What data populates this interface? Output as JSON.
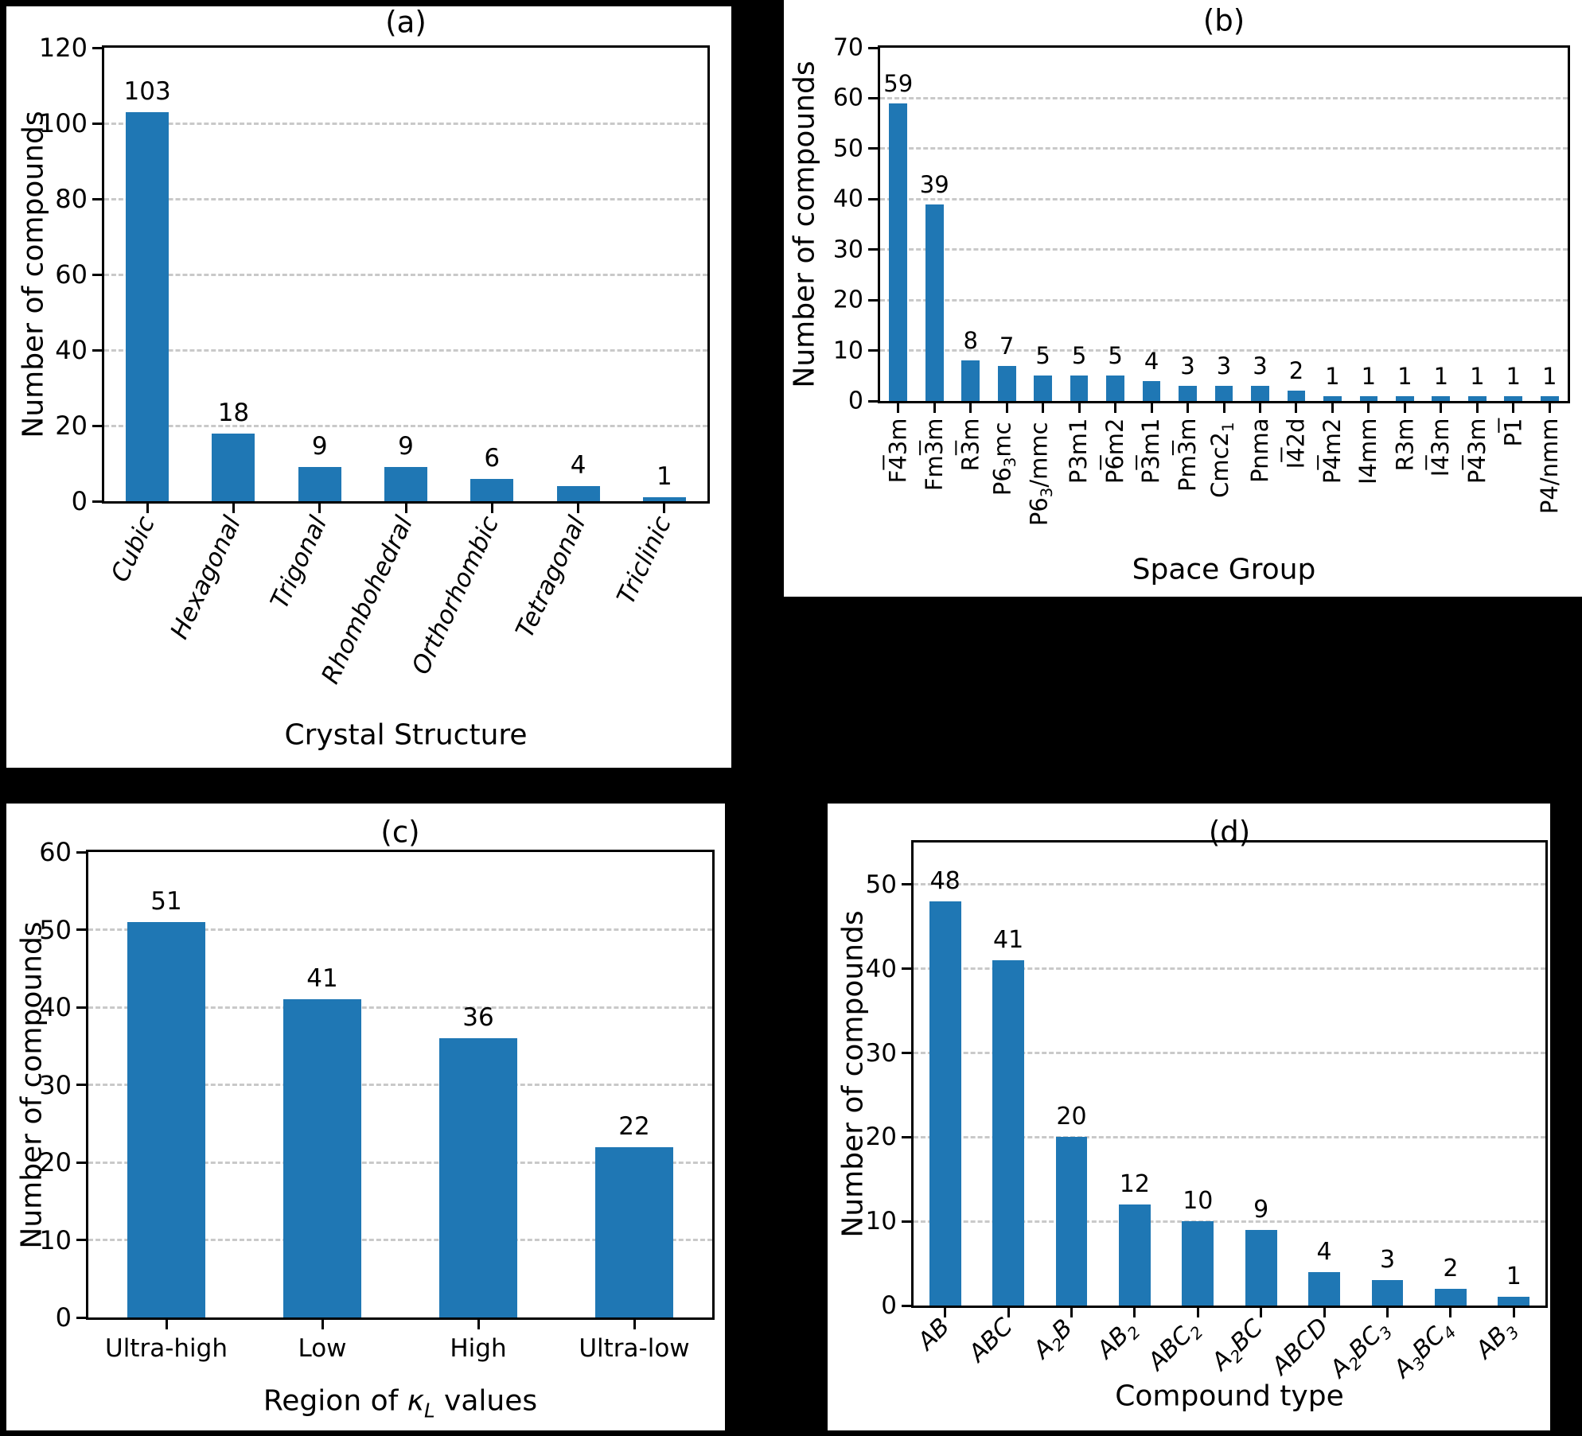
{
  "page": {
    "background": "#000000",
    "panel_background": "#ffffff"
  },
  "colors": {
    "bar": "#1f77b4",
    "grid": "#c9c9c9",
    "axis": "#000000",
    "text": "#000000"
  },
  "chart_data": [
    {
      "id": "a",
      "type": "bar",
      "title": "(a)",
      "ylabel": "Number of compounds",
      "xlabel_segments": [
        {
          "t": "Crystal Structure"
        }
      ],
      "ylim": [
        0,
        120
      ],
      "yticks": [
        0,
        20,
        40,
        60,
        80,
        100,
        120
      ],
      "grid": "dashed-horizontal",
      "legend": null,
      "categories": [
        [
          {
            "t": "Cubic"
          }
        ],
        [
          {
            "t": "Hexagonal"
          }
        ],
        [
          {
            "t": "Trigonal"
          }
        ],
        [
          {
            "t": "Rhombohedral"
          }
        ],
        [
          {
            "t": "Orthorhombic"
          }
        ],
        [
          {
            "t": "Tetragonal"
          }
        ],
        [
          {
            "t": "Triclinic"
          }
        ]
      ],
      "values": [
        103,
        18,
        9,
        9,
        6,
        4,
        1
      ]
    },
    {
      "id": "b",
      "type": "bar",
      "title": "(b)",
      "ylabel": "Number of compounds",
      "xlabel_segments": [
        {
          "t": "Space Group"
        }
      ],
      "ylim": [
        0,
        70
      ],
      "yticks": [
        0,
        10,
        20,
        30,
        40,
        50,
        60,
        70
      ],
      "grid": "dashed-horizontal",
      "legend": null,
      "categories": [
        [
          {
            "t": "F"
          },
          {
            "t": "4",
            "ov": true
          },
          {
            "t": "3m"
          }
        ],
        [
          {
            "t": "Fm"
          },
          {
            "t": "3",
            "ov": true
          },
          {
            "t": "m"
          }
        ],
        [
          {
            "t": "R"
          },
          {
            "t": "3",
            "ov": true
          },
          {
            "t": "m"
          }
        ],
        [
          {
            "t": "P6"
          },
          {
            "t": "3",
            "sb": true
          },
          {
            "t": "mc"
          }
        ],
        [
          {
            "t": "P6"
          },
          {
            "t": "3",
            "sb": true
          },
          {
            "t": "/mmc"
          }
        ],
        [
          {
            "t": "P3m1"
          }
        ],
        [
          {
            "t": "P"
          },
          {
            "t": "6",
            "ov": true
          },
          {
            "t": "m2"
          }
        ],
        [
          {
            "t": "P"
          },
          {
            "t": "3",
            "ov": true
          },
          {
            "t": "m1"
          }
        ],
        [
          {
            "t": "Pm"
          },
          {
            "t": "3",
            "ov": true
          },
          {
            "t": "m"
          }
        ],
        [
          {
            "t": "Cmc2"
          },
          {
            "t": "1",
            "sb": true
          }
        ],
        [
          {
            "t": "Pnma"
          }
        ],
        [
          {
            "t": "I"
          },
          {
            "t": "4",
            "ov": true
          },
          {
            "t": "2d"
          }
        ],
        [
          {
            "t": "P"
          },
          {
            "t": "4",
            "ov": true
          },
          {
            "t": "m2"
          }
        ],
        [
          {
            "t": "I4mm"
          }
        ],
        [
          {
            "t": "R3m"
          }
        ],
        [
          {
            "t": "I"
          },
          {
            "t": "4",
            "ov": true
          },
          {
            "t": "3m"
          }
        ],
        [
          {
            "t": "P"
          },
          {
            "t": "4",
            "ov": true
          },
          {
            "t": "3m"
          }
        ],
        [
          {
            "t": "P"
          },
          {
            "t": "1",
            "ov": true
          }
        ],
        [
          {
            "t": "P4/nmm"
          }
        ]
      ],
      "values": [
        59,
        39,
        8,
        7,
        5,
        5,
        5,
        4,
        3,
        3,
        3,
        2,
        1,
        1,
        1,
        1,
        1,
        1,
        1
      ]
    },
    {
      "id": "c",
      "type": "bar",
      "title": "(c)",
      "ylabel": "Number of compounds",
      "xlabel_segments": [
        {
          "t": "Region of "
        },
        {
          "t": "κ",
          "it": true
        },
        {
          "t": "L",
          "it": true,
          "sb": true
        },
        {
          "t": " values"
        }
      ],
      "ylim": [
        0,
        60
      ],
      "yticks": [
        0,
        10,
        20,
        30,
        40,
        50,
        60
      ],
      "grid": "dashed-horizontal",
      "legend": null,
      "categories": [
        [
          {
            "t": "Ultra-high"
          }
        ],
        [
          {
            "t": "Low"
          }
        ],
        [
          {
            "t": "High"
          }
        ],
        [
          {
            "t": "Ultra-low"
          }
        ]
      ],
      "values": [
        51,
        41,
        36,
        22
      ]
    },
    {
      "id": "d",
      "type": "bar",
      "title": "(d)",
      "ylabel": "Number of compounds",
      "xlabel_segments": [
        {
          "t": "Compound type"
        }
      ],
      "ylim": [
        0,
        55
      ],
      "yticks": [
        0,
        10,
        20,
        30,
        40,
        50
      ],
      "grid": "dashed-horizontal",
      "legend": null,
      "categories": [
        [
          {
            "t": "AB"
          }
        ],
        [
          {
            "t": "ABC"
          }
        ],
        [
          {
            "t": "A"
          },
          {
            "t": "2",
            "sb": true
          },
          {
            "t": "B"
          }
        ],
        [
          {
            "t": "AB"
          },
          {
            "t": "2",
            "sb": true
          }
        ],
        [
          {
            "t": "ABC"
          },
          {
            "t": "2",
            "sb": true
          }
        ],
        [
          {
            "t": "A"
          },
          {
            "t": "2",
            "sb": true
          },
          {
            "t": "BC"
          }
        ],
        [
          {
            "t": "ABCD"
          }
        ],
        [
          {
            "t": "A"
          },
          {
            "t": "2",
            "sb": true
          },
          {
            "t": "BC"
          },
          {
            "t": "3",
            "sb": true
          }
        ],
        [
          {
            "t": "A"
          },
          {
            "t": "3",
            "sb": true
          },
          {
            "t": "BC"
          },
          {
            "t": "4",
            "sb": true
          }
        ],
        [
          {
            "t": "AB"
          },
          {
            "t": "3",
            "sb": true
          }
        ]
      ],
      "values": [
        48,
        41,
        20,
        12,
        10,
        9,
        4,
        3,
        2,
        1
      ]
    }
  ]
}
